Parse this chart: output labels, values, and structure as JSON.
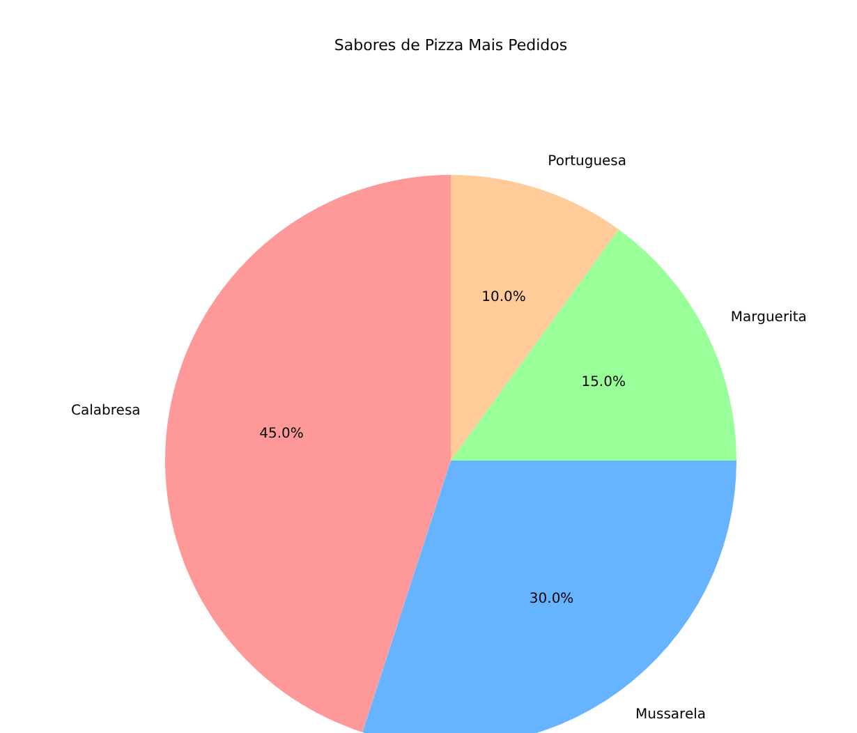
{
  "chart_data": {
    "type": "pie",
    "title": "Sabores de Pizza Mais Pedidos",
    "categories": [
      "Calabresa",
      "Mussarela",
      "Marguerita",
      "Portuguesa"
    ],
    "values": [
      45,
      30,
      15,
      10
    ],
    "colors": [
      "#ff9999",
      "#66b3ff",
      "#99ff99",
      "#ffcc99"
    ],
    "value_labels": [
      "45.0%",
      "30.0%",
      "15.0%",
      "10.0%"
    ]
  }
}
